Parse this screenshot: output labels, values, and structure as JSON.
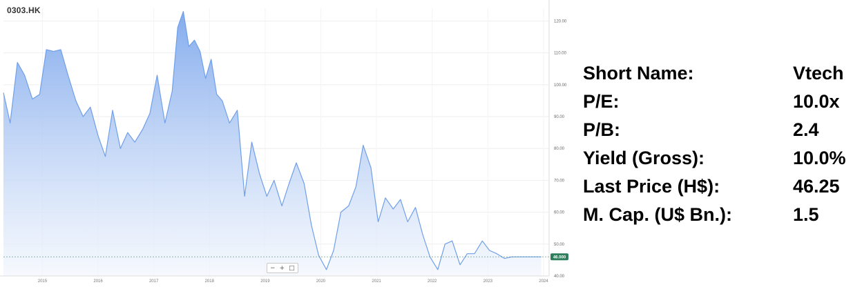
{
  "ticker": "0303.HK",
  "zoom_controls": {
    "zoom_out": "−",
    "zoom_in": "+",
    "reset": "□"
  },
  "stats": [
    {
      "label": "Short Name:",
      "value": "Vtech"
    },
    {
      "label": "P/E:",
      "value": "10.0x"
    },
    {
      "label": "P/B:",
      "value": "2.4"
    },
    {
      "label": "Yield (Gross):",
      "value": "10.0%"
    },
    {
      "label": "Last Price (H$):",
      "value": "46.25"
    },
    {
      "label": "M. Cap. (U$ Bn.):",
      "value": "1.5"
    }
  ],
  "colors": {
    "line": "#6f9fe8",
    "fill_top": "#7ea8ec",
    "fill_bottom": "#f2f6fd",
    "last_price_badge": "#2e7d5b",
    "grid": "#eeeeee"
  },
  "chart_data": {
    "type": "area",
    "title": "0303.HK",
    "xlabel": "",
    "ylabel": "",
    "x_ticks": [
      "2015",
      "2016",
      "2017",
      "2018",
      "2019",
      "2020",
      "2021",
      "2022",
      "2023",
      "2024"
    ],
    "y_ticks": [
      "40.00",
      "50.00",
      "60.00",
      "70.00",
      "80.00",
      "90.00",
      "100.00",
      "110.00",
      "120.00"
    ],
    "ylim": [
      40,
      124
    ],
    "xlim": [
      2014.3,
      2024.1
    ],
    "grid": true,
    "last_price_label": "46.000",
    "last_price": 46.0,
    "series": [
      {
        "x": [
          2014.3,
          2014.42,
          2014.55,
          2014.68,
          2014.82,
          2014.95,
          2015.07,
          2015.2,
          2015.33,
          2015.46,
          2015.6,
          2015.73,
          2015.86,
          2016.0,
          2016.13,
          2016.26,
          2016.4,
          2016.53,
          2016.66,
          2016.8,
          2016.93,
          2017.06,
          2017.2,
          2017.33,
          2017.43,
          2017.53,
          2017.63,
          2017.73,
          2017.83,
          2017.93,
          2018.03,
          2018.13,
          2018.23,
          2018.36,
          2018.5,
          2018.63,
          2018.76,
          2018.9,
          2019.03,
          2019.16,
          2019.3,
          2019.43,
          2019.56,
          2019.7,
          2019.83,
          2019.96,
          2020.1,
          2020.23,
          2020.36,
          2020.5,
          2020.63,
          2020.76,
          2020.9,
          2021.03,
          2021.16,
          2021.3,
          2021.43,
          2021.56,
          2021.7,
          2021.83,
          2021.96,
          2022.1,
          2022.23,
          2022.36,
          2022.5,
          2022.63,
          2022.76,
          2022.9,
          2023.03,
          2023.16,
          2023.3,
          2023.43,
          2023.56,
          2023.7,
          2023.83,
          2023.96
        ],
        "values": [
          97.5,
          88,
          107,
          103,
          95.5,
          97,
          111,
          110.5,
          111,
          103,
          95,
          90,
          93,
          84,
          77.5,
          92,
          80,
          85,
          82,
          86,
          91,
          103,
          88,
          98,
          118,
          123,
          112,
          114,
          110.5,
          102,
          108,
          97,
          95,
          88,
          92,
          65,
          82,
          72,
          65,
          70,
          62,
          69,
          75.5,
          69,
          56,
          46.5,
          42,
          48,
          60,
          62,
          68,
          81,
          74,
          57,
          64.5,
          61,
          64,
          57,
          61.5,
          53,
          46,
          42,
          50,
          51,
          43.5,
          47,
          47,
          51,
          48,
          47,
          45.5,
          46,
          46,
          46,
          46,
          46
        ]
      }
    ]
  }
}
